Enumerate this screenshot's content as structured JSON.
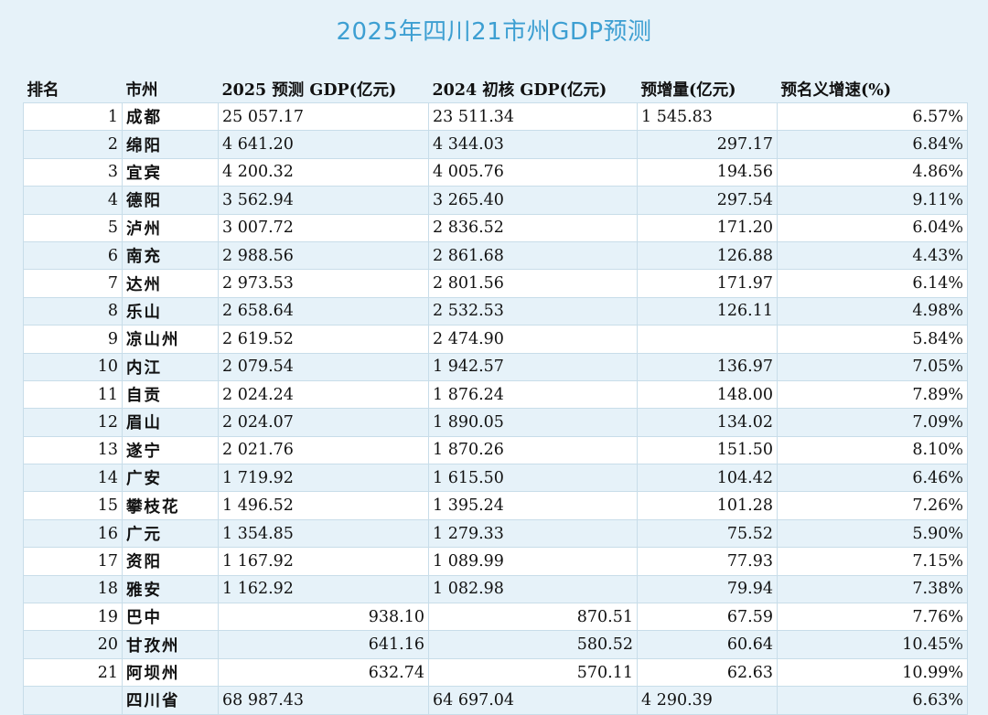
{
  "title": "2025年四川21市州GDP预测",
  "headers": [
    "排名",
    "市州",
    "2025 预测 GDP(亿元)",
    "2024 初核 GDP(亿元)",
    "预增量(亿元)",
    "预名义增速(%)"
  ],
  "rows": [
    {
      "rank": "1",
      "city": "成都",
      "gdp2025": "25 057.17",
      "gdp2024": "23 511.34",
      "increase": "1 545.83",
      "growth": "6.57%"
    },
    {
      "rank": "2",
      "city": "绵阳",
      "gdp2025": "4 641.20",
      "gdp2024": "4 344.03",
      "increase": "297.17",
      "growth": "6.84%"
    },
    {
      "rank": "3",
      "city": "宜宾",
      "gdp2025": "4 200.32",
      "gdp2024": "4 005.76",
      "increase": "194.56",
      "growth": "4.86%"
    },
    {
      "rank": "4",
      "city": "德阳",
      "gdp2025": "3 562.94",
      "gdp2024": "3 265.40",
      "increase": "297.54",
      "growth": "9.11%"
    },
    {
      "rank": "5",
      "city": "泸州",
      "gdp2025": "3 007.72",
      "gdp2024": "2 836.52",
      "increase": "171.20",
      "growth": "6.04%"
    },
    {
      "rank": "6",
      "city": "南充",
      "gdp2025": "2 988.56",
      "gdp2024": "2 861.68",
      "increase": "126.88",
      "growth": "4.43%"
    },
    {
      "rank": "7",
      "city": "达州",
      "gdp2025": "2 973.53",
      "gdp2024": "2 801.56",
      "increase": "171.97",
      "growth": "6.14%"
    },
    {
      "rank": "8",
      "city": "乐山",
      "gdp2025": "2 658.64",
      "gdp2024": "2 532.53",
      "increase": "126.11",
      "growth": "4.98%"
    },
    {
      "rank": "9",
      "city": "凉山州",
      "gdp2025": "2 619.52",
      "gdp2024": "2 474.90",
      "increase": "",
      "growth": "5.84%"
    },
    {
      "rank": "10",
      "city": "内江",
      "gdp2025": "2 079.54",
      "gdp2024": "1 942.57",
      "increase": "136.97",
      "growth": "7.05%"
    },
    {
      "rank": "11",
      "city": "自贡",
      "gdp2025": "2 024.24",
      "gdp2024": "1 876.24",
      "increase": "148.00",
      "growth": "7.89%"
    },
    {
      "rank": "12",
      "city": "眉山",
      "gdp2025": "2 024.07",
      "gdp2024": "1 890.05",
      "increase": "134.02",
      "growth": "7.09%"
    },
    {
      "rank": "13",
      "city": "遂宁",
      "gdp2025": "2 021.76",
      "gdp2024": "1 870.26",
      "increase": "151.50",
      "growth": "8.10%"
    },
    {
      "rank": "14",
      "city": "广安",
      "gdp2025": "1 719.92",
      "gdp2024": "1 615.50",
      "increase": "104.42",
      "growth": "6.46%"
    },
    {
      "rank": "15",
      "city": "攀枝花",
      "gdp2025": "1 496.52",
      "gdp2024": "1 395.24",
      "increase": "101.28",
      "growth": "7.26%"
    },
    {
      "rank": "16",
      "city": "广元",
      "gdp2025": "1 354.85",
      "gdp2024": "1 279.33",
      "increase": "75.52",
      "growth": "5.90%"
    },
    {
      "rank": "17",
      "city": "资阳",
      "gdp2025": "1 167.92",
      "gdp2024": "1 089.99",
      "increase": "77.93",
      "growth": "7.15%"
    },
    {
      "rank": "18",
      "city": "雅安",
      "gdp2025": "1 162.92",
      "gdp2024": "1 082.98",
      "increase": "79.94",
      "growth": "7.38%"
    },
    {
      "rank": "19",
      "city": "巴中",
      "gdp2025": "938.10",
      "gdp2024": "870.51",
      "increase": "67.59",
      "growth": "7.76%"
    },
    {
      "rank": "20",
      "city": "甘孜州",
      "gdp2025": "641.16",
      "gdp2024": "580.52",
      "increase": "60.64",
      "growth": "10.45%"
    },
    {
      "rank": "21",
      "city": "阿坝州",
      "gdp2025": "632.74",
      "gdp2024": "570.11",
      "increase": "62.63",
      "growth": "10.99%"
    },
    {
      "rank": "",
      "city": "四川省",
      "gdp2025": "68 987.43",
      "gdp2024": "64 697.04",
      "increase": "4 290.39",
      "growth": "6.63%"
    }
  ]
}
